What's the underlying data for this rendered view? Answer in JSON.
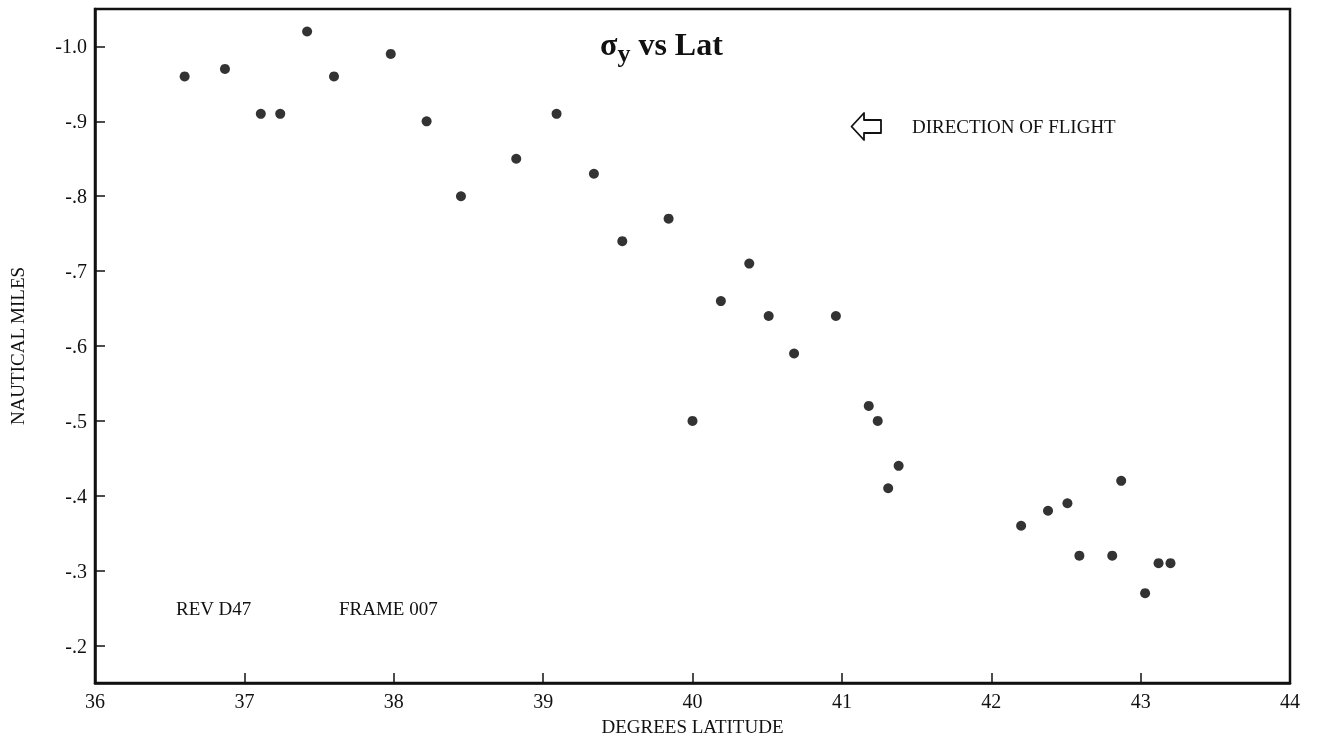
{
  "chart_data": {
    "type": "scatter",
    "title": "σ$_{y}$ vs Lat",
    "xlabel": "DEGREES LATITUDE",
    "ylabel": "NAUTICAL MILES",
    "annotations": [
      "DIRECTION OF FLIGHT",
      "REV D47",
      "FRAME 007"
    ],
    "series": [
      {
        "color": "#000000",
        "x": [
          36.6,
          36.87,
          37.11,
          37.24,
          37.42,
          37.6,
          37.98,
          38.22,
          38.45,
          38.82,
          39.09,
          39.34,
          39.53,
          39.84,
          40.0,
          40.19,
          40.38,
          40.51,
          40.68,
          40.96,
          41.18,
          41.24,
          41.31,
          41.38,
          42.2,
          42.38,
          42.51,
          42.59,
          42.81,
          42.87,
          43.03,
          43.12,
          43.2
        ],
        "values": [
          -0.96,
          -0.97,
          -0.91,
          -0.91,
          -1.02,
          -0.96,
          -0.99,
          -0.9,
          -0.8,
          -0.85,
          -0.91,
          -0.83,
          -0.74,
          -0.77,
          -0.5,
          -0.66,
          -0.71,
          -0.64,
          -0.59,
          -0.64,
          -0.52,
          -0.5,
          -0.41,
          -0.44,
          -0.36,
          -0.38,
          -0.39,
          -0.32,
          -0.32,
          -0.42,
          -0.27,
          -0.31,
          -0.31
        ]
      }
    ],
    "xlim": [
      36,
      44
    ],
    "xticks": [
      36,
      37,
      38,
      39,
      40,
      41,
      42,
      43,
      44
    ],
    "ylim": [
      -0.15,
      -1.05
    ],
    "yticks": [
      {
        "value": -1.0,
        "label": "-1.0"
      },
      {
        "value": -0.9,
        "label": "-.9"
      },
      {
        "value": -0.8,
        "label": "-.8"
      },
      {
        "value": -0.7,
        "label": "-.7"
      },
      {
        "value": -0.6,
        "label": "-.6"
      },
      {
        "value": -0.5,
        "label": "-.5"
      },
      {
        "value": -0.4,
        "label": "-.4"
      },
      {
        "value": -0.3,
        "label": "-.3"
      },
      {
        "value": -0.2,
        "label": "-.2"
      }
    ],
    "grid": false,
    "marker": "circle"
  }
}
